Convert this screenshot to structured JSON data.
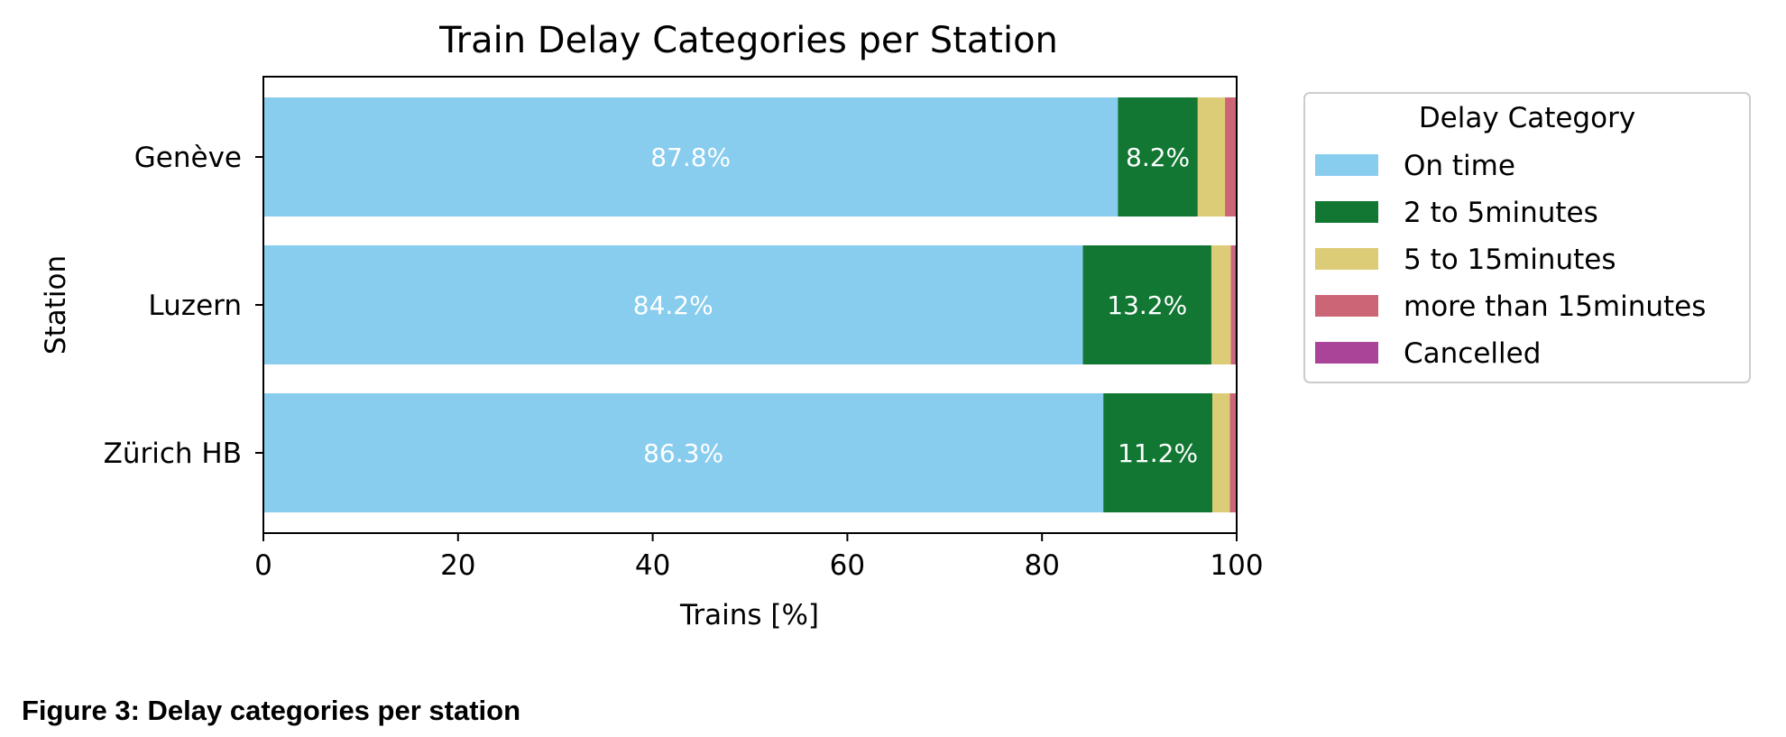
{
  "caption": "Figure 3: Delay categories per station",
  "chart_data": {
    "type": "bar",
    "orientation": "horizontal",
    "stacked": true,
    "title": "Train Delay Categories per Station",
    "xlabel": "Trains [%]",
    "ylabel": "Station",
    "xlim": [
      0,
      100
    ],
    "xticks": [
      0,
      20,
      40,
      60,
      80,
      100
    ],
    "grid": false,
    "categories": [
      "Genève",
      "Luzern",
      "Zürich HB"
    ],
    "series": [
      {
        "name": "On time",
        "color": "#88ccee",
        "values": [
          87.8,
          84.2,
          86.3
        ],
        "labels": [
          "87.8%",
          "84.2%",
          "86.3%"
        ]
      },
      {
        "name": "2 to 5minutes",
        "color": "#117733",
        "values": [
          8.2,
          13.2,
          11.2
        ],
        "labels": [
          "8.2%",
          "13.2%",
          "11.2%"
        ]
      },
      {
        "name": "5 to 15minutes",
        "color": "#ddcc77",
        "values": [
          2.8,
          2.0,
          1.8
        ],
        "labels": [
          "",
          "",
          ""
        ]
      },
      {
        "name": "more than 15minutes",
        "color": "#cc6677",
        "values": [
          1.2,
          0.4,
          0.6
        ],
        "labels": [
          "",
          "",
          ""
        ]
      },
      {
        "name": "Cancelled",
        "color": "#aa4499",
        "values": [
          0.0,
          0.2,
          0.1
        ],
        "labels": [
          "",
          "",
          ""
        ]
      }
    ],
    "legend": {
      "title": "Delay Category",
      "placement": "outside-right"
    }
  }
}
